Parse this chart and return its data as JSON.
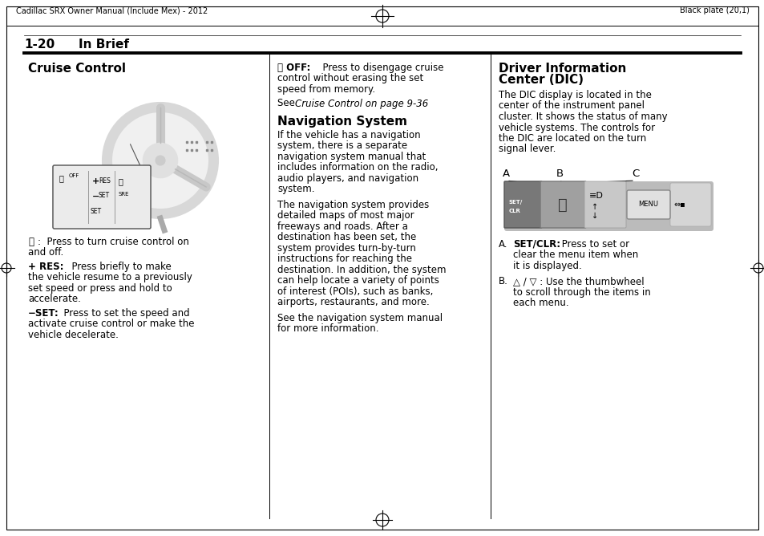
{
  "bg_color": "#ffffff",
  "header_left": "Cadillac SRX Owner Manual (Include Mex) - 2012",
  "header_right": "Black plate (20,1)",
  "section_label": "1-20",
  "section_title": "In Brief",
  "col1_heading": "Cruise Control",
  "col2_off_bold": "Ⓟ OFF:",
  "col2_off_rest": "  Press to disengage cruise\ncontrol without erasing the set\nspeed from memory.",
  "col2_see_normal": "See ",
  "col2_see_italic": "Cruise Control on page 9-36",
  "col2_see_end": ".",
  "col2_nav_heading": "Navigation System",
  "col2_nav_p1": "If the vehicle has a navigation\nsystem, there is a separate\nnavigation system manual that\nincludes information on the radio,\naudio players, and navigation\nsystem.",
  "col2_nav_p2": "The navigation system provides\ndetailed maps of most major\nfreeways and roads. After a\ndestination has been set, the\nsystem provides turn-by-turn\ninstructions for reaching the\ndestination. In addition, the system\ncan help locate a variety of points\nof interest (POIs), such as banks,\nairports, restaurants, and more.",
  "col2_nav_p3": "See the navigation system manual\nfor more information.",
  "col3_heading1": "Driver Information",
  "col3_heading2": "Center (DIC)",
  "col3_body": "The DIC display is located in the\ncenter of the instrument panel\ncluster. It shows the status of many\nvehicle systems. The controls for\nthe DIC are located on the turn\nsignal lever.",
  "col3_A_bold": "SET/CLR:",
  "col3_A_rest": " Press to set or\nclear the menu item when\nit is displayed.",
  "col3_B_sym": "△ / ▽",
  "col3_B_rest": " : Use the thumbwheel\nto scroll through the items in\neach menu.",
  "lw_thin": 0.8,
  "lw_thick": 2.5
}
